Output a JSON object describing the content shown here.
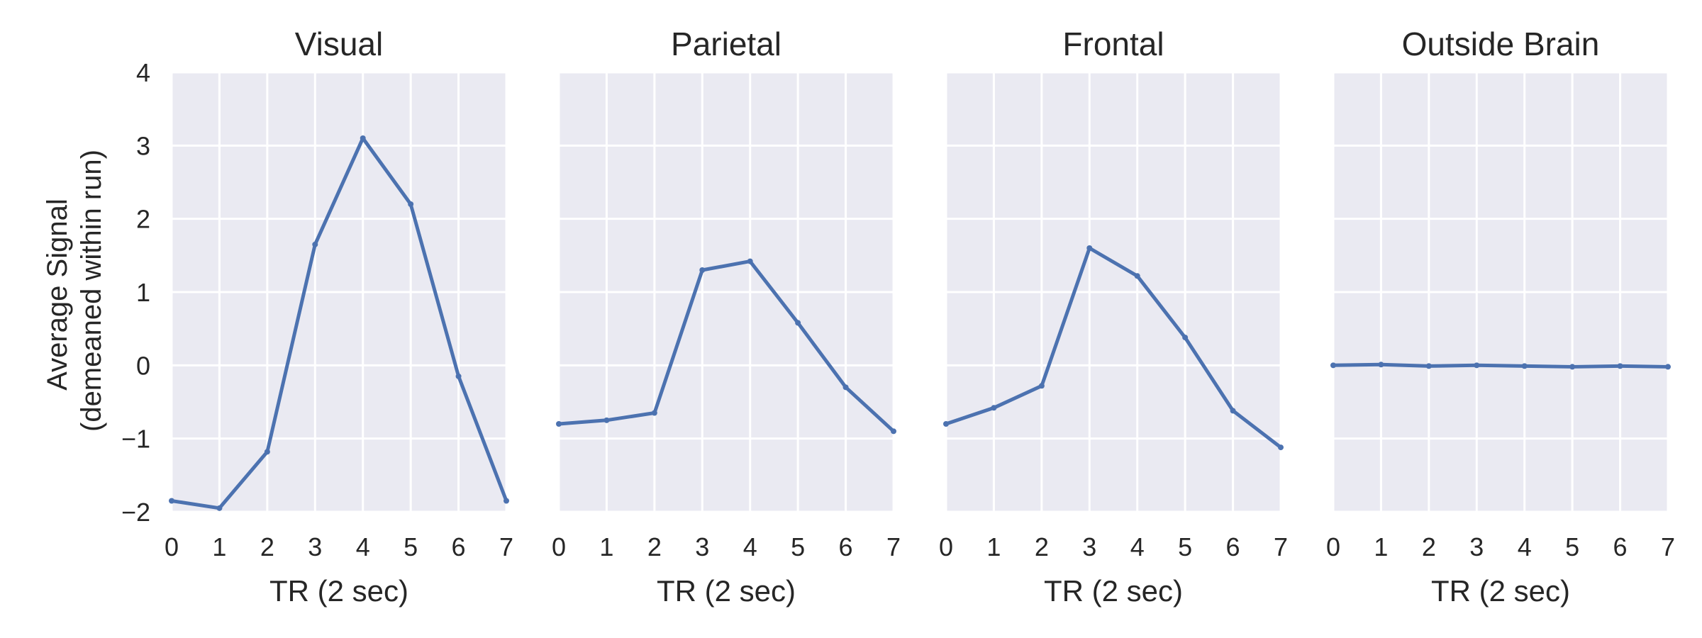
{
  "figure": {
    "ylabel_line1": "Average Signal",
    "ylabel_line2": "(demeaned within run)",
    "line_color": "#4c72b0",
    "panel_bg": "#eaeaf2",
    "grid_color": "#ffffff"
  },
  "chart_data": [
    {
      "type": "line",
      "title": "Visual",
      "xlabel": "TR (2 sec)",
      "ylabel": "Average Signal (demeaned within run)",
      "x": [
        0,
        1,
        2,
        3,
        4,
        5,
        6,
        7
      ],
      "xticks": [
        "0",
        "1",
        "2",
        "3",
        "4",
        "5",
        "6",
        "7"
      ],
      "yticks": [
        "4",
        "3",
        "2",
        "1",
        "0",
        "−1",
        "−2"
      ],
      "xlim": [
        0,
        7
      ],
      "ylim": [
        -2,
        4
      ],
      "grid": true,
      "series": [
        {
          "values": [
            -1.85,
            -1.95,
            -1.18,
            1.65,
            3.1,
            2.2,
            -0.15,
            -1.85
          ]
        }
      ]
    },
    {
      "type": "line",
      "title": "Parietal",
      "xlabel": "TR (2 sec)",
      "x": [
        0,
        1,
        2,
        3,
        4,
        5,
        6,
        7
      ],
      "xticks": [
        "0",
        "1",
        "2",
        "3",
        "4",
        "5",
        "6",
        "7"
      ],
      "xlim": [
        0,
        7
      ],
      "ylim": [
        -2,
        4
      ],
      "grid": true,
      "series": [
        {
          "values": [
            -0.8,
            -0.75,
            -0.65,
            1.3,
            1.42,
            0.58,
            -0.3,
            -0.9
          ]
        }
      ]
    },
    {
      "type": "line",
      "title": "Frontal",
      "xlabel": "TR (2 sec)",
      "x": [
        0,
        1,
        2,
        3,
        4,
        5,
        6,
        7
      ],
      "xticks": [
        "0",
        "1",
        "2",
        "3",
        "4",
        "5",
        "6",
        "7"
      ],
      "xlim": [
        0,
        7
      ],
      "ylim": [
        -2,
        4
      ],
      "grid": true,
      "series": [
        {
          "values": [
            -0.8,
            -0.58,
            -0.28,
            1.6,
            1.22,
            0.38,
            -0.62,
            -1.12
          ]
        }
      ]
    },
    {
      "type": "line",
      "title": "Outside Brain",
      "xlabel": "TR (2 sec)",
      "x": [
        0,
        1,
        2,
        3,
        4,
        5,
        6,
        7
      ],
      "xticks": [
        "0",
        "1",
        "2",
        "3",
        "4",
        "5",
        "6",
        "7"
      ],
      "xlim": [
        0,
        7
      ],
      "ylim": [
        -2,
        4
      ],
      "grid": true,
      "series": [
        {
          "values": [
            0.0,
            0.01,
            -0.01,
            0.0,
            -0.01,
            -0.02,
            -0.01,
            -0.02
          ]
        }
      ]
    }
  ]
}
